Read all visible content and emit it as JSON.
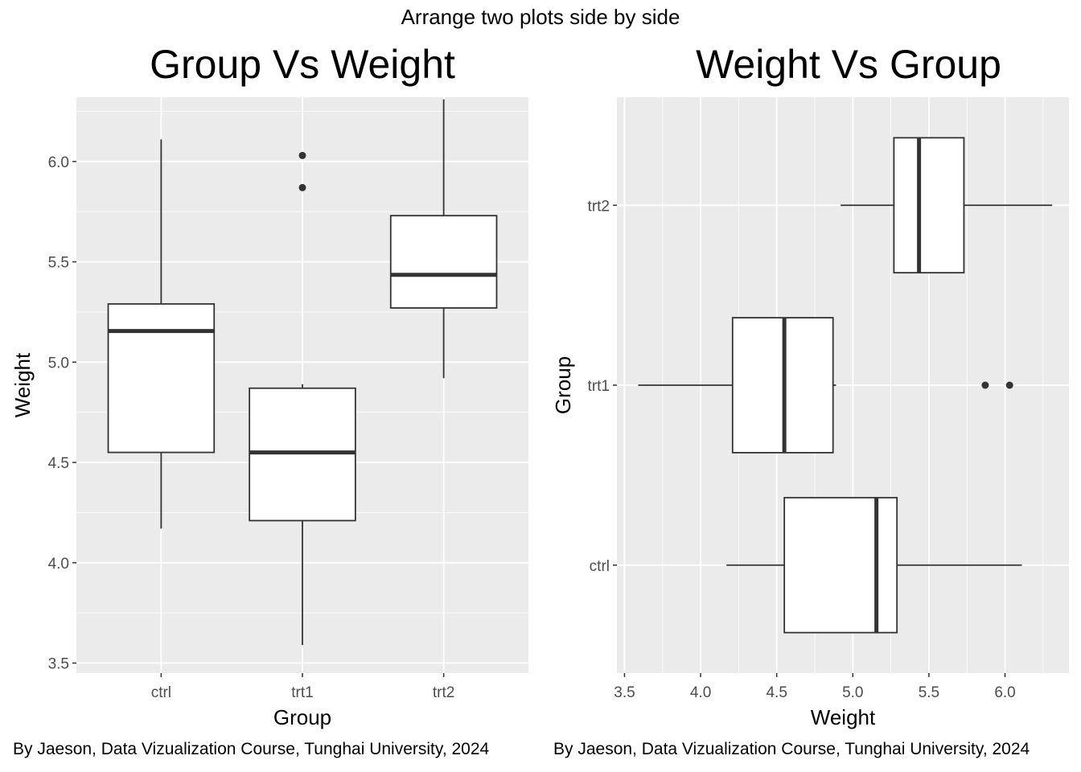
{
  "overall_title": "Arrange two plots side by side",
  "colors": {
    "panel_background": "#ebebeb",
    "grid_major": "#ffffff",
    "box_fill": "#ffffff",
    "box_line": "#333333",
    "tick_label": "#4d4d4d"
  },
  "chart_data": [
    {
      "type": "boxplot",
      "orientation": "vertical",
      "title": "Group Vs Weight",
      "xlabel": "Group",
      "ylabel": "Weight",
      "categories": [
        "ctrl",
        "trt1",
        "trt2"
      ],
      "ylim": [
        3.45,
        6.32
      ],
      "y_ticks": [
        3.5,
        4.0,
        4.5,
        5.0,
        5.5,
        6.0
      ],
      "y_tick_labels": [
        "3.5",
        "4.0",
        "4.5",
        "5.0",
        "5.5",
        "6.0"
      ],
      "grid": true,
      "boxes": [
        {
          "group": "ctrl",
          "whisker_low": 4.17,
          "q1": 4.55,
          "median": 5.155,
          "q3": 5.29,
          "whisker_high": 6.11,
          "outliers": []
        },
        {
          "group": "trt1",
          "whisker_low": 3.59,
          "q1": 4.21,
          "median": 4.55,
          "q3": 4.87,
          "whisker_high": 4.89,
          "outliers": [
            5.87,
            6.03
          ]
        },
        {
          "group": "trt2",
          "whisker_low": 4.92,
          "q1": 5.27,
          "median": 5.435,
          "q3": 5.73,
          "whisker_high": 6.31,
          "outliers": []
        }
      ],
      "caption": "By Jaeson, Data Vizualization Course, Tunghai University, 2024"
    },
    {
      "type": "boxplot",
      "orientation": "horizontal",
      "title": "Weight Vs Group",
      "xlabel": "Weight",
      "ylabel": "Group",
      "categories": [
        "ctrl",
        "trt1",
        "trt2"
      ],
      "xlim": [
        3.45,
        6.42
      ],
      "x_ticks": [
        3.5,
        4.0,
        4.5,
        5.0,
        5.5,
        6.0
      ],
      "x_tick_labels": [
        "3.5",
        "4.0",
        "4.5",
        "5.0",
        "5.5",
        "6.0"
      ],
      "grid": true,
      "boxes": [
        {
          "group": "ctrl",
          "whisker_low": 4.17,
          "q1": 4.55,
          "median": 5.155,
          "q3": 5.29,
          "whisker_high": 6.11,
          "outliers": []
        },
        {
          "group": "trt1",
          "whisker_low": 3.59,
          "q1": 4.21,
          "median": 4.55,
          "q3": 4.87,
          "whisker_high": 4.89,
          "outliers": [
            5.87,
            6.03
          ]
        },
        {
          "group": "trt2",
          "whisker_low": 4.92,
          "q1": 5.27,
          "median": 5.435,
          "q3": 5.73,
          "whisker_high": 6.31,
          "outliers": []
        }
      ],
      "caption": "By Jaeson, Data Vizualization Course, Tunghai University, 2024"
    }
  ]
}
